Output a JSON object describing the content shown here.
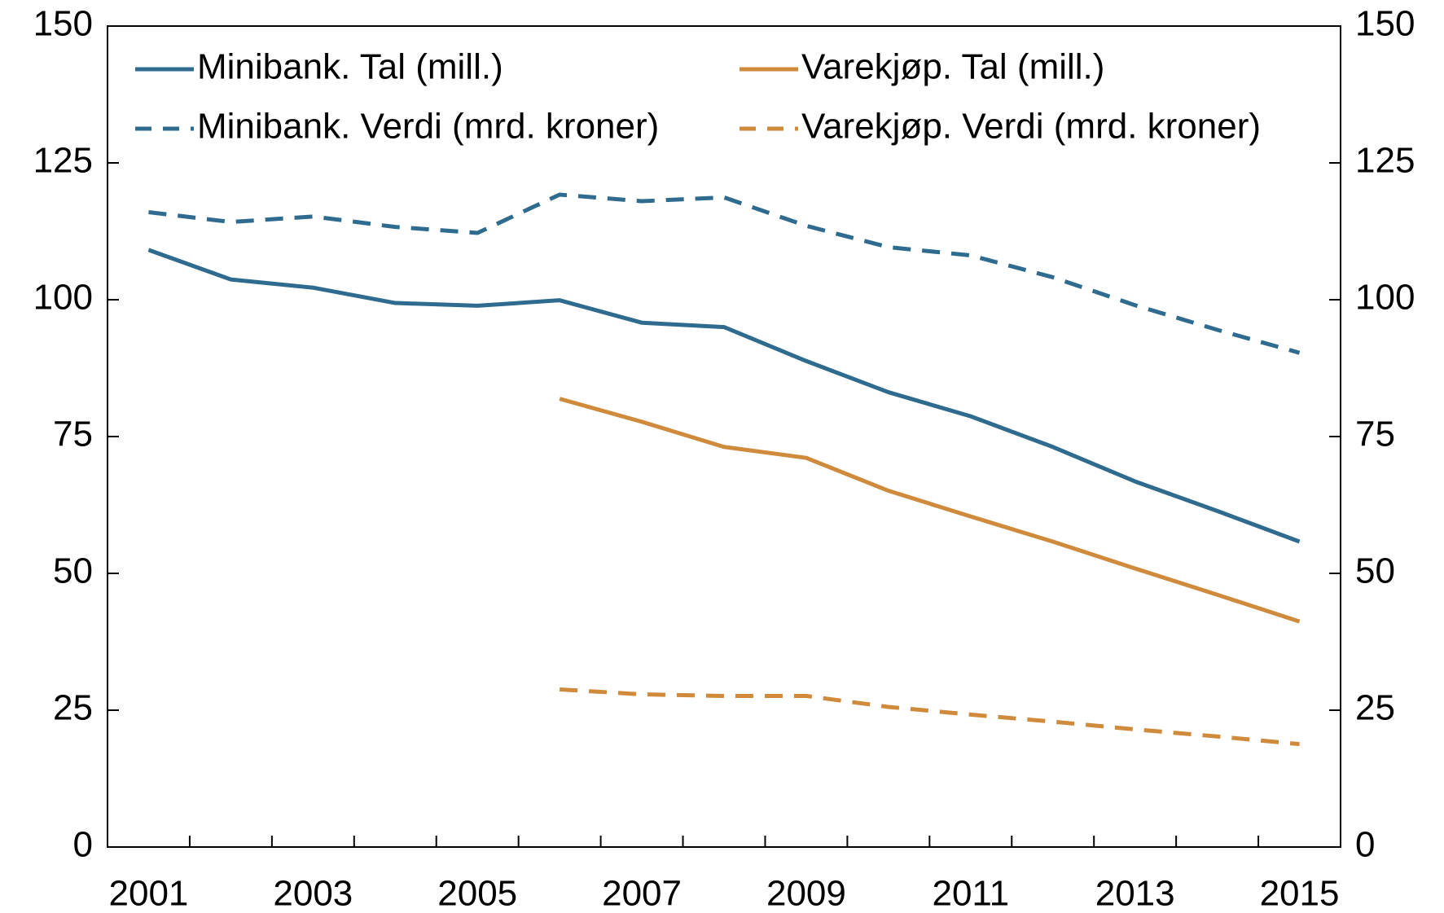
{
  "chart_data": {
    "type": "line",
    "categories": [
      "2001",
      null,
      "2003",
      null,
      "2005",
      null,
      "2007",
      null,
      "2009",
      null,
      "2011",
      null,
      "2013",
      null,
      "2015"
    ],
    "series": [
      {
        "name": "Minibank. Tal (mill.)",
        "color": "#2e6b8f",
        "dashed": false,
        "values": [
          109.1,
          103.7,
          102.2,
          99.4,
          98.9,
          99.9,
          95.8,
          95.0,
          88.8,
          83.1,
          78.7,
          73.1,
          66.8,
          61.4,
          55.8
        ]
      },
      {
        "name": "Varekjøp. Tal (mill.)",
        "color": "#d08a3c",
        "dashed": false,
        "values": [
          null,
          null,
          null,
          null,
          null,
          81.9,
          77.7,
          73.1,
          71.1,
          65.1,
          60.4,
          55.8,
          50.9,
          46.1,
          41.2
        ]
      },
      {
        "name": "Minibank. Verdi (mrd. kroner)",
        "color": "#2e6b8f",
        "dashed": true,
        "values": [
          116.0,
          114.2,
          115.2,
          113.3,
          112.2,
          119.2,
          118.0,
          118.7,
          113.5,
          109.6,
          108.1,
          104.1,
          99.0,
          94.5,
          90.3
        ]
      },
      {
        "name": "Varekjøp. Verdi (mrd. kroner)",
        "color": "#d08a3c",
        "dashed": true,
        "values": [
          null,
          null,
          null,
          null,
          null,
          28.8,
          27.9,
          27.6,
          27.6,
          25.6,
          24.2,
          22.9,
          21.5,
          20.2,
          18.8
        ]
      }
    ],
    "ylim": [
      0,
      150
    ],
    "yticks": [
      0,
      25,
      50,
      75,
      100,
      125,
      150
    ],
    "y2lim": [
      0,
      150
    ],
    "y2ticks": [
      0,
      25,
      50,
      75,
      100,
      125,
      150
    ],
    "legend": "top"
  }
}
